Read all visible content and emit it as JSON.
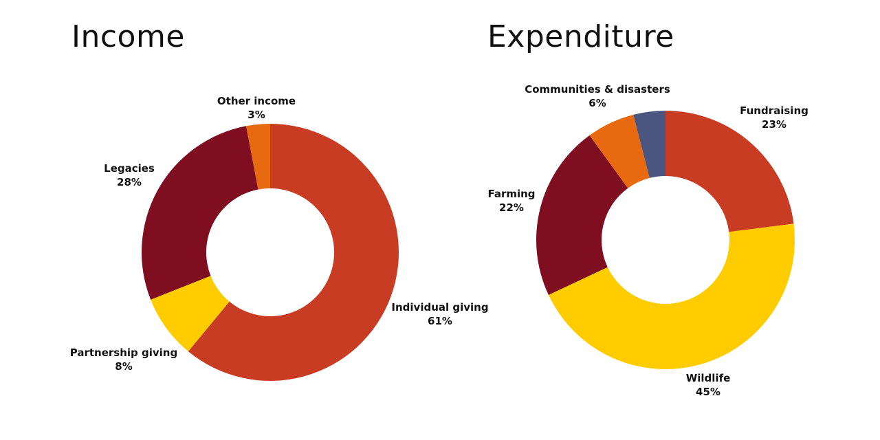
{
  "chart_data": [
    {
      "type": "pie",
      "donut": true,
      "title": "Income",
      "slices": [
        {
          "name": "Individual giving",
          "value": 61,
          "label": "61%",
          "color": "#C93C24"
        },
        {
          "name": "Partnership giving",
          "value": 8,
          "label": "8%",
          "color": "#FFCC00"
        },
        {
          "name": "Legacies",
          "value": 28,
          "label": "28%",
          "color": "#7F0F20"
        },
        {
          "name": "Other income",
          "value": 3,
          "label": "3%",
          "color": "#E86A10"
        }
      ]
    },
    {
      "type": "pie",
      "donut": true,
      "title": "Expenditure",
      "slices": [
        {
          "name": "Fundraising",
          "value": 23,
          "label": "23%",
          "color": "#C93C24"
        },
        {
          "name": "Wildlife",
          "value": 45,
          "label": "45%",
          "color": "#FFCC00"
        },
        {
          "name": "Farming",
          "value": 22,
          "label": "22%",
          "color": "#7F0F20"
        },
        {
          "name": "Communities & disasters",
          "value": 6,
          "label": "6%",
          "color": "#E86A10"
        },
        {
          "name": "",
          "value": 4,
          "label": "",
          "color": "#4A5680"
        }
      ]
    }
  ]
}
